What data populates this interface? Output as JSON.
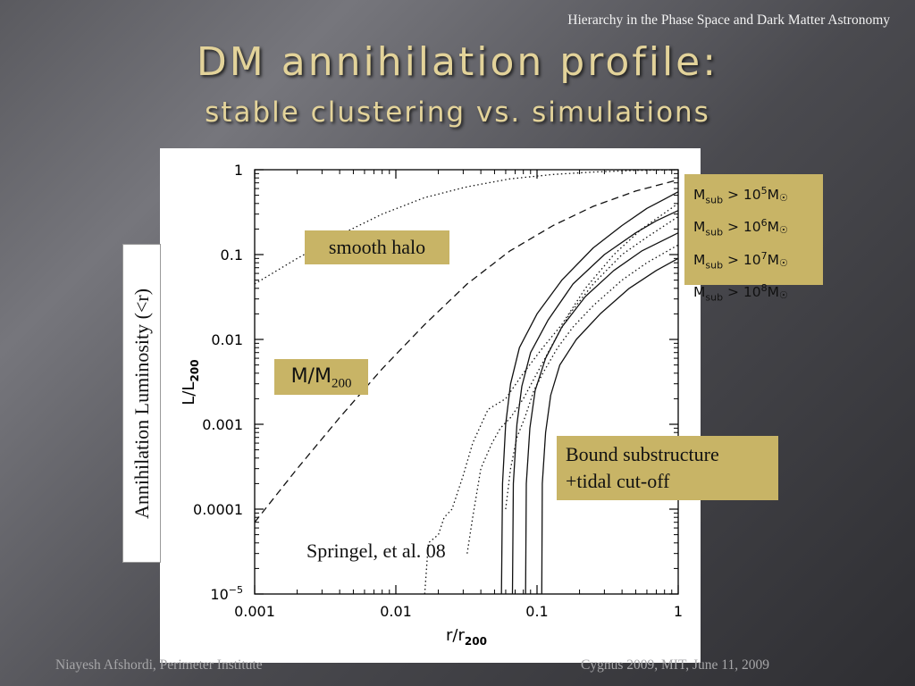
{
  "header_note": "Hierarchy in the Phase Space and Dark Matter Astronomy",
  "title": "DM annihilation profile:",
  "subtitle": "stable clustering vs. simulations",
  "slide_ylabel": "Annihilation Luminosity (<r)",
  "annotations": {
    "smooth_halo": "smooth halo",
    "mass_label_main": "M/M",
    "mass_label_sub": "200",
    "bound_line1": "Bound substructure",
    "bound_line2": "+tidal cut-off",
    "citation": "Springel, et al. 08",
    "legend_prefix": "M",
    "legend_sub": "sub",
    "legend_gt": " > 10",
    "legend_suffix": "M",
    "legend_sun": "☉",
    "legend_exponents": [
      "5",
      "6",
      "7",
      "8"
    ]
  },
  "footer": {
    "left": "Niayesh Afshordi, Perimeter Institute",
    "right": "Cygnus 2009,  MIT, June 11, 2009"
  },
  "chart_data": {
    "type": "line",
    "xscale": "log",
    "yscale": "log",
    "xlim": [
      0.001,
      1
    ],
    "ylim": [
      1e-05,
      1
    ],
    "xlabel": "r/r",
    "xlabel_sub": "200",
    "ylabel": "L/L",
    "ylabel_sub": "200",
    "xticks": [
      {
        "value": 0.001,
        "label": "0.001"
      },
      {
        "value": 0.01,
        "label": "0.01"
      },
      {
        "value": 0.1,
        "label": "0.1"
      },
      {
        "value": 1,
        "label": "1"
      }
    ],
    "yticks": [
      {
        "value": 1,
        "label": "1"
      },
      {
        "value": 0.1,
        "label": "0.1"
      },
      {
        "value": 0.01,
        "label": "0.01"
      },
      {
        "value": 0.001,
        "label": "0.001"
      },
      {
        "value": 0.0001,
        "label": "0.0001"
      },
      {
        "value": 1e-05,
        "label": "10",
        "sup": "−5"
      }
    ],
    "series": [
      {
        "style": "dotted",
        "x": [
          0.001,
          0.002,
          0.004,
          0.008,
          0.016,
          0.032,
          0.064,
          0.13,
          0.25,
          0.5,
          1.0
        ],
        "y": [
          0.045,
          0.09,
          0.17,
          0.3,
          0.47,
          0.63,
          0.78,
          0.88,
          0.94,
          0.98,
          1.0
        ]
      },
      {
        "style": "dashed",
        "x": [
          0.001,
          0.002,
          0.004,
          0.008,
          0.016,
          0.032,
          0.064,
          0.13,
          0.25,
          0.5,
          1.0
        ],
        "y": [
          7e-05,
          0.0003,
          0.0012,
          0.0045,
          0.015,
          0.045,
          0.11,
          0.22,
          0.37,
          0.56,
          0.76
        ]
      },
      {
        "style": "solid",
        "x": [
          0.056,
          0.057,
          0.06,
          0.065,
          0.075,
          0.1,
          0.15,
          0.25,
          0.4,
          0.6,
          0.8,
          1.0
        ],
        "y": [
          1e-05,
          0.0002,
          0.001,
          0.003,
          0.008,
          0.02,
          0.05,
          0.12,
          0.22,
          0.35,
          0.45,
          0.55
        ]
      },
      {
        "style": "solid",
        "x": [
          0.067,
          0.068,
          0.072,
          0.078,
          0.09,
          0.12,
          0.18,
          0.3,
          0.5,
          0.7,
          1.0
        ],
        "y": [
          1e-05,
          0.0002,
          0.001,
          0.0028,
          0.007,
          0.017,
          0.045,
          0.1,
          0.18,
          0.25,
          0.33
        ]
      },
      {
        "style": "solid",
        "x": [
          0.083,
          0.084,
          0.089,
          0.097,
          0.115,
          0.15,
          0.22,
          0.35,
          0.55,
          0.8,
          1.0
        ],
        "y": [
          1e-05,
          0.0002,
          0.0009,
          0.0025,
          0.006,
          0.014,
          0.032,
          0.065,
          0.11,
          0.15,
          0.18
        ]
      },
      {
        "style": "solid",
        "x": [
          0.108,
          0.109,
          0.115,
          0.125,
          0.145,
          0.19,
          0.28,
          0.45,
          0.7,
          1.0
        ],
        "y": [
          1e-05,
          0.0002,
          0.0008,
          0.0022,
          0.005,
          0.01,
          0.02,
          0.04,
          0.065,
          0.09
        ]
      },
      {
        "style": "dotted",
        "x": [
          0.016,
          0.017,
          0.02,
          0.022,
          0.025,
          0.03,
          0.035,
          0.045,
          0.06,
          0.08,
          0.11,
          0.15,
          0.22,
          0.35,
          0.55,
          1.0
        ],
        "y": [
          1e-05,
          4e-05,
          5e-05,
          8e-05,
          0.0001,
          0.00025,
          0.0006,
          0.0015,
          0.002,
          0.004,
          0.008,
          0.015,
          0.04,
          0.1,
          0.2,
          0.4
        ]
      },
      {
        "style": "dotted",
        "x": [
          0.032,
          0.035,
          0.04,
          0.048,
          0.055,
          0.065,
          0.08,
          0.1,
          0.13,
          0.17,
          0.25,
          0.4,
          0.6,
          1.0
        ],
        "y": [
          3e-05,
          8e-05,
          0.0003,
          0.0006,
          0.0009,
          0.0012,
          0.002,
          0.004,
          0.009,
          0.02,
          0.045,
          0.1,
          0.16,
          0.28
        ]
      },
      {
        "style": "dotted",
        "x": [
          0.06,
          0.065,
          0.072,
          0.082,
          0.095,
          0.11,
          0.14,
          0.18,
          0.25,
          0.4,
          0.6,
          1.0
        ],
        "y": [
          0.0001,
          0.0003,
          0.0007,
          0.0012,
          0.0025,
          0.004,
          0.008,
          0.014,
          0.025,
          0.05,
          0.08,
          0.13
        ]
      }
    ]
  }
}
